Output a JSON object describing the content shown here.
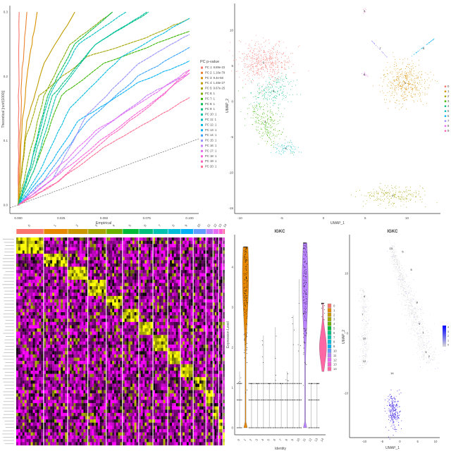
{
  "chart_data": [
    {
      "type": "line",
      "panel": "jackstraw",
      "xlabel": "Empirical",
      "ylabel": "Theoretical [runif(1000)]",
      "xlim": [
        0,
        0.1
      ],
      "ylim": [
        0,
        0.3
      ],
      "xticks": [
        "0.000",
        "0.025",
        "0.050",
        "0.075",
        "0.100"
      ],
      "yticks": [
        "0.0",
        "0.1",
        "0.2",
        "0.3"
      ],
      "legend_title": "PC p-value",
      "legend_position": "right",
      "reference_line": "y = x (dashed)",
      "series": [
        {
          "name": "PC 1: 8.89e-22",
          "color": "#F8766D",
          "points": [
            [
              0,
              0
            ],
            [
              0.0002,
              0.15
            ],
            [
              0.0005,
              0.3
            ]
          ]
        },
        {
          "name": "PC 2: 1.16e-79",
          "color": "#EA8331",
          "points": [
            [
              0,
              0
            ],
            [
              0.001,
              0.1
            ],
            [
              0.002,
              0.2
            ],
            [
              0.005,
              0.3
            ]
          ]
        },
        {
          "name": "PC 3: 9.4e-58",
          "color": "#D89000",
          "points": [
            [
              0,
              0
            ],
            [
              0.002,
              0.12
            ],
            [
              0.006,
              0.22
            ],
            [
              0.011,
              0.3
            ]
          ]
        },
        {
          "name": "PC 4: 1.48e-27",
          "color": "#C09B00",
          "points": [
            [
              0,
              0
            ],
            [
              0.005,
              0.13
            ],
            [
              0.015,
              0.22
            ],
            [
              0.033,
              0.3
            ]
          ]
        },
        {
          "name": "PC 5: 9.67e-25",
          "color": "#A3A500",
          "points": [
            [
              0,
              0
            ],
            [
              0.004,
              0.1
            ],
            [
              0.012,
              0.17
            ],
            [
              0.04,
              0.23
            ],
            [
              0.075,
              0.26
            ],
            [
              0.1,
              0.29
            ]
          ]
        },
        {
          "name": "PC 6: 1",
          "color": "#7CAE00",
          "points": [
            [
              0,
              0
            ],
            [
              0.005,
              0.06
            ],
            [
              0.015,
              0.17
            ],
            [
              0.03,
              0.25
            ],
            [
              0.055,
              0.3
            ]
          ]
        },
        {
          "name": "PC 7: 1",
          "color": "#39B600",
          "points": [
            [
              0,
              0
            ],
            [
              0.01,
              0.06
            ],
            [
              0.025,
              0.17
            ],
            [
              0.05,
              0.22
            ],
            [
              0.1,
              0.27
            ]
          ]
        },
        {
          "name": "PC 8: 1",
          "color": "#00BB4E",
          "points": [
            [
              0,
              0
            ],
            [
              0.007,
              0.06
            ],
            [
              0.017,
              0.17
            ],
            [
              0.033,
              0.25
            ],
            [
              0.055,
              0.3
            ]
          ]
        },
        {
          "name": "PC 9: 1",
          "color": "#00BF7D",
          "points": [
            [
              0,
              0
            ],
            [
              0.008,
              0.06
            ],
            [
              0.02,
              0.17
            ],
            [
              0.045,
              0.25
            ],
            [
              0.076,
              0.3
            ]
          ]
        },
        {
          "name": "PC 10: 1",
          "color": "#00C1A3",
          "points": [
            [
              0,
              0
            ],
            [
              0.01,
              0.06
            ],
            [
              0.022,
              0.17
            ],
            [
              0.045,
              0.25
            ],
            [
              0.075,
              0.3
            ]
          ]
        },
        {
          "name": "PC 11: 1",
          "color": "#00BFC4",
          "points": [
            [
              0,
              0
            ],
            [
              0.007,
              0.06
            ],
            [
              0.018,
              0.17
            ],
            [
              0.035,
              0.25
            ],
            [
              0.063,
              0.3
            ]
          ]
        },
        {
          "name": "PC 12: 1",
          "color": "#00BAE0",
          "points": [
            [
              0,
              0
            ],
            [
              0.012,
              0.05
            ],
            [
              0.03,
              0.15
            ],
            [
              0.06,
              0.23
            ],
            [
              0.1,
              0.29
            ]
          ]
        },
        {
          "name": "PC 13: 1",
          "color": "#00B0F6",
          "points": [
            [
              0,
              0
            ],
            [
              0.015,
              0.05
            ],
            [
              0.035,
              0.13
            ],
            [
              0.07,
              0.19
            ],
            [
              0.1,
              0.224
            ]
          ]
        },
        {
          "name": "PC 14: 1",
          "color": "#35A2FF",
          "points": [
            [
              0,
              0
            ],
            [
              0.015,
              0.04
            ],
            [
              0.04,
              0.13
            ],
            [
              0.07,
              0.2
            ],
            [
              0.1,
              0.245
            ]
          ]
        },
        {
          "name": "PC 15: 1",
          "color": "#9590FF",
          "points": [
            [
              0,
              0
            ],
            [
              0.02,
              0.04
            ],
            [
              0.04,
              0.14
            ],
            [
              0.07,
              0.22
            ],
            [
              0.1,
              0.265
            ]
          ]
        },
        {
          "name": "PC 16: 1",
          "color": "#C77CFF",
          "points": [
            [
              0,
              0
            ],
            [
              0.02,
              0.04
            ],
            [
              0.045,
              0.11
            ],
            [
              0.075,
              0.17
            ],
            [
              0.1,
              0.205
            ]
          ]
        },
        {
          "name": "PC 17: 1",
          "color": "#E76BF3",
          "points": [
            [
              0,
              0
            ],
            [
              0.018,
              0.045
            ],
            [
              0.045,
              0.115
            ],
            [
              0.075,
              0.165
            ],
            [
              0.1,
              0.21
            ]
          ]
        },
        {
          "name": "PC 18: 1",
          "color": "#FA62DB",
          "points": [
            [
              0,
              0
            ],
            [
              0.02,
              0.04
            ],
            [
              0.048,
              0.1
            ],
            [
              0.078,
              0.16
            ],
            [
              0.1,
              0.205
            ]
          ]
        },
        {
          "name": "PC 19: 1",
          "color": "#FF62BC",
          "points": [
            [
              0,
              0
            ],
            [
              0.022,
              0.035
            ],
            [
              0.05,
              0.1
            ],
            [
              0.08,
              0.16
            ],
            [
              0.1,
              0.21
            ]
          ]
        },
        {
          "name": "PC 20: 1",
          "color": "#FF6C91",
          "points": [
            [
              0,
              0
            ],
            [
              0.02,
              0.03
            ],
            [
              0.05,
              0.09
            ],
            [
              0.08,
              0.135
            ],
            [
              0.1,
              0.167
            ]
          ]
        }
      ]
    },
    {
      "type": "scatter",
      "panel": "umap-clusters",
      "xlabel": "UMAP_1",
      "ylabel": "UMAP_2",
      "xlim": [
        -10.5,
        14
      ],
      "ylim": [
        -16,
        14
      ],
      "xticks": [
        "-10",
        "-5",
        "0",
        "5",
        "10"
      ],
      "yticks": [
        "10",
        "5",
        "0",
        "-5",
        "-10",
        "-15"
      ],
      "legend_position": "right",
      "clusters": [
        {
          "name": "0",
          "color": "#F8766D",
          "center": [
            -7.2,
            5.5
          ]
        },
        {
          "name": "1",
          "color": "#D89000",
          "center": [
            9.8,
            2.6
          ]
        },
        {
          "name": "2",
          "color": "#A3A500",
          "center": [
            8.3,
            -13.2
          ]
        },
        {
          "name": "3",
          "color": "#39B600",
          "center": [
            -7,
            -2.8
          ]
        },
        {
          "name": "4",
          "color": "#00BF7D",
          "center": [
            -6,
            1.5
          ]
        },
        {
          "name": "5",
          "color": "#00BFC4",
          "center": [
            -4.5,
            -6.6
          ]
        },
        {
          "name": "6",
          "color": "#00B0F6",
          "center": [
            12,
            7.5
          ]
        },
        {
          "name": "7",
          "color": "#9590FF",
          "center": [
            6.8,
            7.5
          ]
        },
        {
          "name": "8",
          "color": "#E76BF3",
          "center": [
            4.9,
            3.8
          ]
        },
        {
          "name": "9",
          "color": "#FF62BC",
          "center": [
            4.9,
            12.7
          ]
        }
      ]
    },
    {
      "type": "heatmap",
      "panel": "marker-heatmap",
      "clusters": [
        "0",
        "1",
        "2",
        "3",
        "4",
        "5",
        "6",
        "7",
        "8",
        "9",
        "10",
        "11",
        "12",
        "13",
        "14"
      ],
      "cluster_colors": [
        "#F8766D",
        "#E58700",
        "#C99800",
        "#A3A500",
        "#6BB100",
        "#00BA38",
        "#00BF7D",
        "#00C0AF",
        "#00BCD8",
        "#00B0F6",
        "#619CFF",
        "#B983FF",
        "#E76BF3",
        "#FD61D1",
        "#FF67A4"
      ],
      "cluster_fractions": [
        0.132,
        0.115,
        0.097,
        0.088,
        0.078,
        0.078,
        0.068,
        0.071,
        0.061,
        0.061,
        0.061,
        0.034,
        0.027,
        0.02,
        0.01
      ],
      "color_scale": {
        "low": "#FF00FF",
        "mid": "#000000",
        "high": "#FFFF00"
      }
    },
    {
      "type": "violin",
      "panel": "igkc-violin",
      "title": "IGKC",
      "xlabel": "Identity",
      "ylabel": "Expression Level",
      "ylim": [
        0,
        4.6
      ],
      "yticks": [
        "0",
        "1",
        "2",
        "3",
        "4"
      ],
      "categories": [
        "0",
        "1",
        "2",
        "3",
        "4",
        "5",
        "6",
        "7",
        "8",
        "9",
        "10",
        "11",
        "12",
        "13",
        "14"
      ],
      "max_values": [
        1.4,
        4.5,
        1.1,
        1.1,
        2.3,
        1.1,
        2.5,
        1.1,
        1.4,
        2.8,
        3.7,
        4.6,
        1.1,
        1.1,
        3.1
      ],
      "min_values": [
        0,
        0,
        0,
        0,
        0,
        0,
        0,
        0,
        0,
        0,
        0,
        0,
        0,
        0,
        1.4
      ],
      "expressing_clusters": [
        "1",
        "11",
        "14"
      ],
      "legend_position": "right"
    },
    {
      "type": "scatter",
      "panel": "igkc-feature",
      "title": "IGKC",
      "xlabel": "UMAP_1",
      "ylabel": "UMAP_2",
      "xticks": [
        "-10",
        "-5",
        "0",
        "5",
        "10"
      ],
      "yticks": [
        "10",
        "0",
        "-10"
      ],
      "colorbar_ticks": [
        "4",
        "3",
        "2",
        "1",
        "0"
      ],
      "colorbar": {
        "low": "#D9D9D9",
        "high": "#0000FF"
      },
      "cluster_labels": [
        {
          "label": "13",
          "at": [
            -2.5,
            14
          ]
        },
        {
          "label": "5",
          "at": [
            0.8,
            13.5
          ]
        },
        {
          "label": "6",
          "at": [
            3.2,
            10.5
          ]
        },
        {
          "label": "8",
          "at": [
            4.8,
            5
          ]
        },
        {
          "label": "0",
          "at": [
            5.5,
            1.5
          ]
        },
        {
          "label": "1",
          "at": [
            6.5,
            0
          ]
        },
        {
          "label": "3",
          "at": [
            7.3,
            -3.3
          ]
        },
        {
          "label": "2",
          "at": [
            8.2,
            -3.8
          ]
        },
        {
          "label": "4",
          "at": [
            -10,
            6
          ]
        },
        {
          "label": "7",
          "at": [
            -10.5,
            3
          ]
        },
        {
          "label": "10",
          "at": [
            -10,
            -1
          ]
        },
        {
          "label": "12",
          "at": [
            -10,
            -4.8
          ]
        },
        {
          "label": "14",
          "at": [
            -2.2,
            -6.8
          ]
        }
      ]
    }
  ]
}
